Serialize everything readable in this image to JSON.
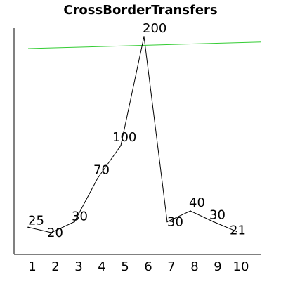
{
  "chart_data": {
    "type": "line",
    "title": "CrossBorderTransfers",
    "xlabel": "",
    "ylabel": "",
    "x": [
      1,
      2,
      3,
      4,
      5,
      6,
      7,
      8,
      9,
      10
    ],
    "series": [
      {
        "values": [
          25,
          20,
          30,
          70,
          100,
          200,
          30,
          40,
          30,
          21
        ],
        "color": "#000000"
      }
    ],
    "trendline": {
      "start": 189,
      "end": 195,
      "color": "#33cc33"
    },
    "ylim": [
      0,
      240
    ],
    "grid": false,
    "legend": "none",
    "axis_color": "#000000"
  }
}
